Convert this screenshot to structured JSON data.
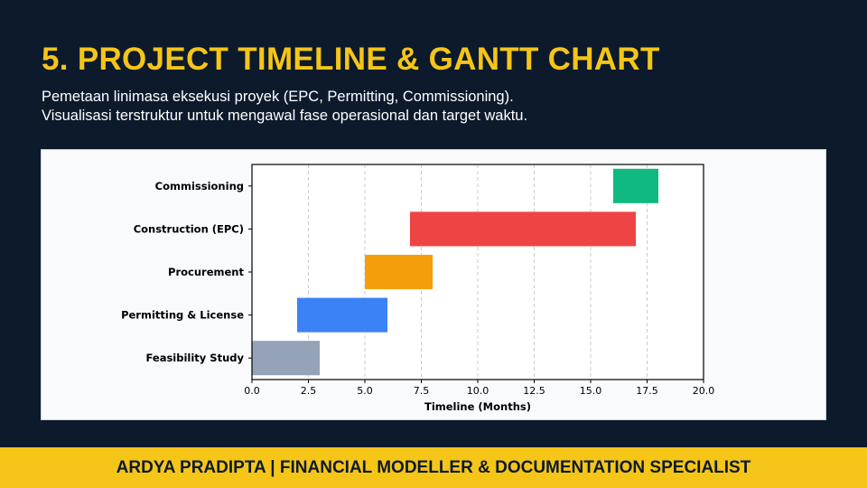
{
  "header": {
    "title": "5. PROJECT TIMELINE & GANTT CHART",
    "subtitle_line1": "Pemetaan linimasa eksekusi proyek (EPC, Permitting, Commissioning).",
    "subtitle_line2": "Visualisasi terstruktur untuk mengawal fase operasional dan target waktu."
  },
  "chart_data": {
    "type": "bar",
    "orientation": "horizontal-gantt",
    "xlabel": "Timeline (Months)",
    "ylabel": "",
    "xlim": [
      0,
      20
    ],
    "xticks": [
      0.0,
      2.5,
      5.0,
      7.5,
      10.0,
      12.5,
      15.0,
      17.5,
      20.0
    ],
    "xtick_labels": [
      "0.0",
      "2.5",
      "5.0",
      "7.5",
      "10.0",
      "12.5",
      "15.0",
      "17.5",
      "20.0"
    ],
    "grid": "vertical-dashed",
    "tasks": [
      {
        "name": "Feasibility Study",
        "start": 0,
        "end": 3,
        "color": "#94a3b8"
      },
      {
        "name": "Permitting & License",
        "start": 2,
        "end": 6,
        "color": "#3b82f6"
      },
      {
        "name": "Procurement",
        "start": 5,
        "end": 8,
        "color": "#f59e0b"
      },
      {
        "name": "Construction (EPC)",
        "start": 7,
        "end": 17,
        "color": "#ef4444"
      },
      {
        "name": "Commissioning",
        "start": 16,
        "end": 18,
        "color": "#10b981"
      }
    ]
  },
  "footer": {
    "text": "ARDYA PRADIPTA  |  FINANCIAL MODELLER & DOCUMENTATION SPECIALIST"
  }
}
